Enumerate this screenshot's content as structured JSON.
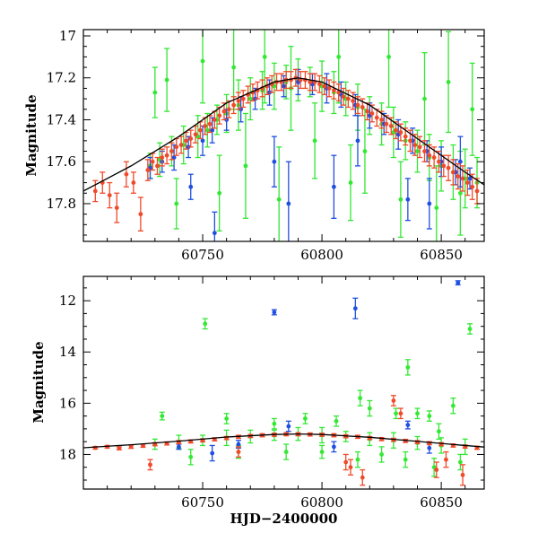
{
  "colors": {
    "green": "#33e833",
    "blue": "#1f4fe0",
    "red": "#f04a2a",
    "model": "#000000"
  },
  "chart_data": [
    {
      "type": "scatter",
      "panel": "top",
      "xlabel": "",
      "ylabel": "Magnitude",
      "xlim": [
        60700,
        60868
      ],
      "ylim": [
        17.98,
        16.97
      ],
      "y_inverted": true,
      "xticks": [
        60750,
        60800,
        60850
      ],
      "xtick_labels": [
        "60750",
        "60800",
        "60850"
      ],
      "yticks": [
        17,
        17.2,
        17.4,
        17.6,
        17.8
      ],
      "ytick_labels": [
        "17",
        "17.2",
        "17.4",
        "17.6",
        "17.8"
      ],
      "grid": false,
      "model_curve": {
        "x": [
          60700,
          60720,
          60740,
          60760,
          60780,
          60790,
          60800,
          60820,
          60840,
          60860,
          60868
        ],
        "y": [
          17.74,
          17.62,
          17.48,
          17.32,
          17.22,
          17.2,
          17.22,
          17.33,
          17.49,
          17.65,
          17.71
        ]
      },
      "series": [
        {
          "color": "green",
          "x": [
            60728,
            60732,
            60737,
            60742,
            60748,
            60752,
            60756,
            60760,
            60765,
            60770,
            60775,
            60780,
            60785,
            60790,
            60795,
            60800,
            60805,
            60810,
            60815,
            60820,
            60825,
            60830,
            60835,
            60840,
            60845,
            60850,
            60855,
            60860,
            60865
          ],
          "y": [
            17.62,
            17.59,
            17.55,
            17.52,
            17.48,
            17.45,
            17.4,
            17.37,
            17.33,
            17.3,
            17.26,
            17.24,
            17.22,
            17.21,
            17.22,
            17.24,
            17.27,
            17.3,
            17.34,
            17.38,
            17.42,
            17.46,
            17.5,
            17.55,
            17.58,
            17.62,
            17.65,
            17.68,
            17.7
          ],
          "err": [
            0.06,
            0.08,
            0.07,
            0.09,
            0.1,
            0.08,
            0.07,
            0.09,
            0.12,
            0.1,
            0.09,
            0.11,
            0.08,
            0.1,
            0.07,
            0.12,
            0.1,
            0.08,
            0.11,
            0.09,
            0.1,
            0.12,
            0.09,
            0.1,
            0.11,
            0.12,
            0.13,
            0.14,
            0.12
          ]
        },
        {
          "color": "green",
          "x": [
            60730,
            60735,
            60739,
            60750,
            60757,
            60763,
            60768,
            60776,
            60782,
            60787,
            60797,
            60807,
            60812,
            60818,
            60828,
            60833,
            60843,
            60848,
            60853,
            60858,
            60863
          ],
          "y": [
            17.27,
            17.21,
            17.8,
            17.12,
            17.75,
            17.15,
            17.62,
            17.1,
            17.78,
            17.25,
            17.5,
            17.1,
            17.7,
            17.55,
            17.1,
            17.78,
            17.3,
            17.82,
            17.22,
            17.75,
            17.35
          ],
          "err": [
            0.12,
            0.15,
            0.12,
            0.2,
            0.18,
            0.2,
            0.25,
            0.22,
            0.25,
            0.2,
            0.18,
            0.22,
            0.18,
            0.2,
            0.24,
            0.18,
            0.22,
            0.2,
            0.24,
            0.2,
            0.22
          ]
        },
        {
          "color": "blue",
          "x": [
            60728,
            60733,
            60738,
            60744,
            60750,
            60754,
            60760,
            60766,
            60772,
            60778,
            60784,
            60790,
            60796,
            60802,
            60808,
            60814,
            60820,
            60826,
            60832,
            60838,
            60844,
            60850,
            60856,
            60862
          ],
          "y": [
            17.63,
            17.6,
            17.58,
            17.53,
            17.5,
            17.45,
            17.4,
            17.35,
            17.3,
            17.27,
            17.24,
            17.22,
            17.23,
            17.25,
            17.28,
            17.33,
            17.38,
            17.42,
            17.47,
            17.5,
            17.55,
            17.6,
            17.65,
            17.68
          ],
          "err": [
            0.05,
            0.05,
            0.06,
            0.05,
            0.07,
            0.06,
            0.05,
            0.06,
            0.05,
            0.06,
            0.05,
            0.06,
            0.05,
            0.07,
            0.06,
            0.05,
            0.06,
            0.05,
            0.07,
            0.06,
            0.05,
            0.07,
            0.06,
            0.05
          ]
        },
        {
          "color": "blue",
          "x": [
            60745,
            60755,
            60780,
            60786,
            60805,
            60815,
            60836,
            60845,
            60858
          ],
          "y": [
            17.72,
            17.94,
            17.6,
            17.8,
            17.72,
            17.5,
            17.78,
            17.8,
            17.6
          ],
          "err": [
            0.06,
            0.1,
            0.12,
            0.2,
            0.15,
            0.12,
            0.1,
            0.12,
            0.12
          ]
        },
        {
          "color": "red",
          "x": [
            60705,
            60708,
            60711,
            60714,
            60718,
            60721,
            60724,
            60727,
            60729,
            60731,
            60733,
            60735,
            60737,
            60739,
            60741,
            60743,
            60745,
            60747,
            60749,
            60751,
            60753,
            60755,
            60757,
            60759,
            60761,
            60763,
            60765,
            60767,
            60769,
            60771,
            60773,
            60775,
            60777,
            60779,
            60781,
            60783,
            60785,
            60787,
            60789,
            60791,
            60793,
            60795,
            60797,
            60799,
            60801,
            60803,
            60805,
            60807,
            60809,
            60811,
            60813,
            60815,
            60817,
            60819,
            60821,
            60823,
            60825,
            60827,
            60829,
            60831,
            60833,
            60835,
            60837,
            60839,
            60841,
            60843,
            60845,
            60847,
            60849,
            60851,
            60853,
            60855,
            60857,
            60859,
            60861,
            60863,
            60865
          ],
          "y": [
            17.74,
            17.7,
            17.76,
            17.82,
            17.66,
            17.7,
            17.85,
            17.64,
            17.6,
            17.62,
            17.58,
            17.57,
            17.55,
            17.53,
            17.52,
            17.5,
            17.49,
            17.47,
            17.45,
            17.43,
            17.42,
            17.4,
            17.38,
            17.36,
            17.35,
            17.33,
            17.31,
            17.3,
            17.28,
            17.27,
            17.26,
            17.25,
            17.24,
            17.23,
            17.22,
            17.22,
            17.21,
            17.21,
            17.2,
            17.21,
            17.21,
            17.22,
            17.22,
            17.23,
            17.24,
            17.25,
            17.26,
            17.27,
            17.29,
            17.3,
            17.31,
            17.33,
            17.34,
            17.36,
            17.37,
            17.39,
            17.4,
            17.42,
            17.43,
            17.45,
            17.46,
            17.48,
            17.5,
            17.52,
            17.53,
            17.55,
            17.57,
            17.58,
            17.6,
            17.62,
            17.63,
            17.65,
            17.67,
            17.68,
            17.7,
            17.72,
            17.74
          ],
          "err": [
            0.05,
            0.05,
            0.06,
            0.07,
            0.06,
            0.05,
            0.08,
            0.05,
            0.04,
            0.04,
            0.04,
            0.04,
            0.04,
            0.04,
            0.04,
            0.04,
            0.04,
            0.04,
            0.04,
            0.04,
            0.04,
            0.04,
            0.04,
            0.04,
            0.04,
            0.04,
            0.04,
            0.04,
            0.04,
            0.04,
            0.04,
            0.04,
            0.04,
            0.04,
            0.04,
            0.04,
            0.04,
            0.04,
            0.04,
            0.04,
            0.04,
            0.04,
            0.04,
            0.04,
            0.04,
            0.04,
            0.04,
            0.04,
            0.04,
            0.04,
            0.04,
            0.04,
            0.04,
            0.04,
            0.04,
            0.04,
            0.04,
            0.04,
            0.04,
            0.04,
            0.04,
            0.04,
            0.05,
            0.05,
            0.05,
            0.05,
            0.05,
            0.05,
            0.05,
            0.05,
            0.06,
            0.06,
            0.06,
            0.06,
            0.06,
            0.06,
            0.06
          ]
        }
      ]
    },
    {
      "type": "scatter",
      "panel": "bottom",
      "xlabel": "HJD−2400000",
      "ylabel": "Magnitude",
      "xlim": [
        60700,
        60868
      ],
      "ylim": [
        19.35,
        11.05
      ],
      "y_inverted": true,
      "xticks": [
        60750,
        60800,
        60850
      ],
      "xtick_labels": [
        "60750",
        "60800",
        "60850"
      ],
      "yticks": [
        12,
        14,
        16,
        18
      ],
      "ytick_labels": [
        "12",
        "14",
        "16",
        "18"
      ],
      "grid": false,
      "model_curve": {
        "x": [
          60700,
          60720,
          60740,
          60760,
          60780,
          60790,
          60800,
          60820,
          60840,
          60860,
          60868
        ],
        "y": [
          17.74,
          17.62,
          17.48,
          17.32,
          17.22,
          17.2,
          17.22,
          17.33,
          17.49,
          17.65,
          17.71
        ]
      },
      "series": [
        {
          "color": "green",
          "x": [
            60730,
            60740,
            60750,
            60760,
            60770,
            60780,
            60790,
            60800,
            60810,
            60820,
            60830,
            60840,
            60850,
            60860
          ],
          "y": [
            17.6,
            17.5,
            17.45,
            17.35,
            17.3,
            17.25,
            17.2,
            17.25,
            17.3,
            17.4,
            17.45,
            17.55,
            17.65,
            17.7
          ],
          "err": [
            0.2,
            0.25,
            0.2,
            0.3,
            0.25,
            0.2,
            0.25,
            0.3,
            0.2,
            0.25,
            0.3,
            0.25,
            0.3,
            0.3
          ]
        },
        {
          "color": "green",
          "x": [
            60733,
            60751,
            60760,
            60780,
            60793,
            60806,
            60816,
            60820,
            60831,
            60836,
            60840,
            60845,
            60849,
            60855,
            60862
          ],
          "y": [
            16.5,
            12.9,
            16.6,
            16.8,
            16.6,
            16.7,
            15.8,
            16.2,
            16.4,
            14.6,
            16.4,
            16.5,
            17.1,
            16.1,
            13.1
          ],
          "err": [
            0.15,
            0.2,
            0.2,
            0.2,
            0.2,
            0.2,
            0.3,
            0.3,
            0.2,
            0.3,
            0.2,
            0.2,
            0.3,
            0.3,
            0.2
          ]
        },
        {
          "color": "green",
          "x": [
            60745,
            60765,
            60785,
            60800,
            60815,
            60825,
            60835,
            60847,
            60858
          ],
          "y": [
            18.1,
            17.9,
            17.9,
            17.9,
            18.2,
            18.0,
            18.2,
            18.5,
            18.3
          ],
          "err": [
            0.3,
            0.25,
            0.3,
            0.25,
            0.3,
            0.3,
            0.3,
            0.35,
            0.3
          ]
        },
        {
          "color": "blue",
          "x": [
            60740,
            60754,
            60765,
            60780,
            60786,
            60805,
            60814,
            60836,
            60845,
            60857
          ],
          "y": [
            17.7,
            17.95,
            17.6,
            12.45,
            16.9,
            17.7,
            12.3,
            16.85,
            17.75,
            11.3
          ],
          "err": [
            0.1,
            0.3,
            0.15,
            0.1,
            0.2,
            0.2,
            0.4,
            0.15,
            0.2,
            0.08
          ]
        },
        {
          "color": "red",
          "x": [
            60705,
            60710,
            60715,
            60720,
            60725,
            60730,
            60735,
            60740,
            60745,
            60750,
            60755,
            60760,
            60765,
            60770,
            60775,
            60780,
            60785,
            60790,
            60795,
            60800,
            60805,
            60810,
            60815,
            60820,
            60825,
            60830,
            60835,
            60840,
            60845,
            60850,
            60855,
            60860,
            60865
          ],
          "y": [
            17.74,
            17.7,
            17.76,
            17.7,
            17.66,
            17.6,
            17.57,
            17.52,
            17.49,
            17.45,
            17.41,
            17.36,
            17.31,
            17.28,
            17.25,
            17.23,
            17.21,
            17.21,
            17.22,
            17.23,
            17.25,
            17.29,
            17.31,
            17.36,
            17.4,
            17.43,
            17.47,
            17.52,
            17.56,
            17.6,
            17.65,
            17.69,
            17.74
          ],
          "err": [
            0.05,
            0.05,
            0.06,
            0.06,
            0.06,
            0.06,
            0.06,
            0.06,
            0.06,
            0.06,
            0.06,
            0.06,
            0.06,
            0.06,
            0.06,
            0.06,
            0.06,
            0.06,
            0.06,
            0.06,
            0.06,
            0.06,
            0.06,
            0.06,
            0.06,
            0.06,
            0.06,
            0.06,
            0.06,
            0.06,
            0.06,
            0.06,
            0.06
          ]
        },
        {
          "color": "red",
          "x": [
            60728,
            60765,
            60810,
            60812,
            60817,
            60830,
            60833,
            60848,
            60852,
            60859
          ],
          "y": [
            18.4,
            17.9,
            18.3,
            18.5,
            18.9,
            15.9,
            16.4,
            18.6,
            18.2,
            18.8
          ],
          "err": [
            0.2,
            0.2,
            0.3,
            0.3,
            0.3,
            0.2,
            0.2,
            0.3,
            0.3,
            0.4
          ]
        }
      ]
    }
  ]
}
